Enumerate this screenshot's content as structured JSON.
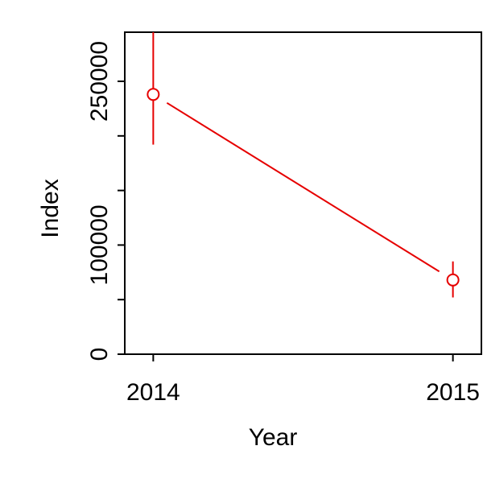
{
  "chart_data": {
    "type": "line",
    "title": "",
    "xlabel": "Year",
    "ylabel": "Index",
    "x": [
      2014,
      2015
    ],
    "x_tick_labels": [
      "2014",
      "2015"
    ],
    "y_ticks": [
      0,
      50000,
      100000,
      150000,
      200000,
      250000
    ],
    "y_tick_labels": [
      "0",
      "",
      "100000",
      "",
      "",
      "250000"
    ],
    "ylim": [
      0,
      295000
    ],
    "series": [
      {
        "color": "#e60000",
        "values": [
          238000,
          68000
        ],
        "lower": [
          192000,
          52000
        ],
        "upper": [
          295000,
          85000
        ],
        "marker": "open-circle"
      }
    ],
    "grid": false,
    "legend": "none"
  }
}
